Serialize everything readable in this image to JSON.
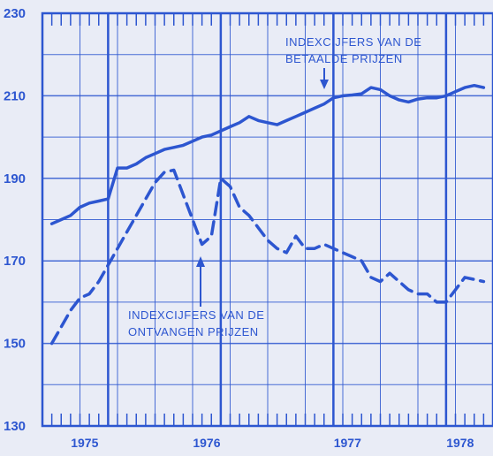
{
  "chart_data": {
    "type": "line",
    "title": "",
    "xlabel": "",
    "ylabel": "",
    "color": "#2d56d0",
    "background": "#e9ecf6",
    "grid": true,
    "ylim": [
      130,
      230
    ],
    "yticks": [
      130,
      150,
      170,
      190,
      210,
      230
    ],
    "ytick_labels": [
      "130",
      "150",
      "170",
      "190",
      "210",
      "230"
    ],
    "xlim": [
      0,
      48
    ],
    "year_labels": [
      {
        "label": "1975",
        "x": 4.5
      },
      {
        "label": "1976",
        "x": 17.5
      },
      {
        "label": "1977",
        "x": 32.5
      },
      {
        "label": "1978",
        "x": 44.5
      }
    ],
    "series": [
      {
        "name": "INDEXCIJFERS VAN DE BETAALDE PRIJZEN",
        "style": "solid",
        "x": [
          1,
          2,
          3,
          4,
          5,
          6,
          7,
          8,
          9,
          10,
          11,
          12,
          13,
          14,
          15,
          16,
          17,
          18,
          19,
          20,
          21,
          22,
          23,
          24,
          25,
          26,
          27,
          28,
          29,
          30,
          31,
          32,
          33,
          34,
          35,
          36,
          37,
          38,
          39,
          40,
          41,
          42,
          43,
          44,
          45,
          46,
          47
        ],
        "values": [
          179,
          180,
          181,
          183,
          184,
          184.5,
          185,
          192.5,
          192.5,
          193.5,
          195,
          196,
          197,
          197.5,
          198,
          199,
          200,
          200.5,
          201.5,
          202.5,
          203.5,
          205,
          204,
          203.5,
          203,
          204,
          205,
          206,
          207,
          208,
          209.5,
          210,
          210.2,
          210.5,
          212,
          211.5,
          210,
          209,
          208.5,
          209.2,
          209.5,
          209.5,
          210,
          211,
          212,
          212.5,
          212
        ]
      },
      {
        "name": "INDEXCIJFERS VAN DE ONTVANGEN PRIJZEN",
        "style": "dashed",
        "x": [
          1,
          2,
          3,
          4,
          5,
          6,
          7,
          8,
          9,
          10,
          11,
          12,
          13,
          14,
          15,
          16,
          17,
          18,
          19,
          20,
          21,
          22,
          23,
          24,
          25,
          26,
          27,
          28,
          29,
          30,
          31,
          32,
          33,
          34,
          35,
          36,
          37,
          38,
          39,
          40,
          41,
          42,
          43,
          44,
          45,
          46,
          47
        ],
        "values": [
          150,
          154,
          158,
          161,
          162,
          165,
          169,
          173,
          177,
          181,
          185,
          189,
          191.5,
          192,
          186,
          180,
          174,
          176,
          190,
          188,
          183,
          181,
          178,
          175,
          173,
          172,
          176,
          173,
          173,
          174,
          173,
          172,
          171,
          170,
          166,
          165,
          167,
          165,
          163,
          162,
          162,
          160,
          160,
          163,
          166,
          165.5,
          165
        ]
      }
    ],
    "annotations": [
      {
        "lines": [
          "INDEXCIJFERS VAN DE",
          "BETAALDE PRIJZEN"
        ]
      },
      {
        "lines": [
          "INDEXCIJFERS VAN DE",
          "ONTVANGEN PRIJZEN"
        ]
      }
    ]
  }
}
